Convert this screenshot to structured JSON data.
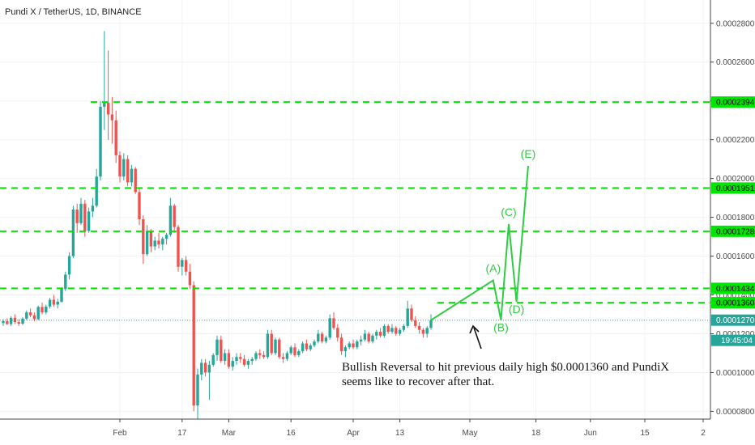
{
  "chart_data": {
    "type": "candlestick",
    "title": "Pundi X / TetherUS, 1D, BINANCE",
    "ylim": [
      7.6e-05,
      0.000292
    ],
    "y_ticks": [
      "0.0000800",
      "0.0001000",
      "0.0001200",
      "0.0001400",
      "0.0001600",
      "0.0001800",
      "0.0002000",
      "0.0002200",
      "0.0002400",
      "0.0002600",
      "0.0002800"
    ],
    "x_ticks": [
      {
        "label": "Feb",
        "index": 30
      },
      {
        "label": "17",
        "index": 46
      },
      {
        "label": "Mar",
        "index": 58
      },
      {
        "label": "16",
        "index": 74
      },
      {
        "label": "Apr",
        "index": 90
      },
      {
        "label": "13",
        "index": 102
      },
      {
        "label": "May",
        "index": 120
      },
      {
        "label": "18",
        "index": 137
      },
      {
        "label": "Jun",
        "index": 151
      },
      {
        "label": "15",
        "index": 165
      },
      {
        "label": "2",
        "index": 180
      }
    ],
    "level_tags": [
      {
        "value": 0.0002394,
        "label": "0.0002394"
      },
      {
        "value": 0.0001951,
        "label": "0.0001951"
      },
      {
        "value": 0.0001728,
        "label": "0.0001728"
      },
      {
        "value": 0.0001434,
        "label": "0.0001434"
      },
      {
        "value": 0.000136,
        "label": "0.0001360"
      }
    ],
    "last_price": {
      "value": 0.000127,
      "label": "0.0001270"
    },
    "countdown": "19:45:04",
    "wave_labels": [
      {
        "label": "(A)",
        "index": 126,
        "value": 0.0001475
      },
      {
        "label": "(B)",
        "index": 128,
        "value": 0.000127
      },
      {
        "label": "(C)",
        "index": 130,
        "value": 0.0001765
      },
      {
        "label": "(D)",
        "index": 132,
        "value": 0.0001365
      },
      {
        "label": "(E)",
        "index": 135,
        "value": 0.0002065
      }
    ],
    "annotation": [
      "Bullish Reversal to hit previous daily high $0.0001360 and PundiX",
      "seems like to recover after that."
    ],
    "colors": {
      "up": "#26a69a",
      "down": "#ef5350",
      "level": "#00e600",
      "wave": "#2ecc40",
      "price_line": "#26a69a"
    },
    "ohlc": [
      [
        0.0001255,
        0.0001275,
        0.000124,
        0.0001265
      ],
      [
        0.0001265,
        0.000128,
        0.0001245,
        0.000125
      ],
      [
        0.000125,
        0.000129,
        0.000124,
        0.0001282
      ],
      [
        0.0001282,
        0.00013,
        0.000125,
        0.000126
      ],
      [
        0.000126,
        0.0001275,
        0.000124,
        0.0001252
      ],
      [
        0.0001252,
        0.0001285,
        0.0001245,
        0.0001278
      ],
      [
        0.0001278,
        0.000132,
        0.000127,
        0.000131
      ],
      [
        0.000131,
        0.000133,
        0.0001285,
        0.0001295
      ],
      [
        0.0001295,
        0.000131,
        0.0001265,
        0.0001275
      ],
      [
        0.0001275,
        0.0001345,
        0.000127,
        0.0001338
      ],
      [
        0.0001338,
        0.000136,
        0.00013,
        0.000131
      ],
      [
        0.000131,
        0.000135,
        0.00013,
        0.000134
      ],
      [
        0.000134,
        0.0001385,
        0.000133,
        0.0001375
      ],
      [
        0.0001375,
        0.00014,
        0.000134,
        0.000135
      ],
      [
        0.000135,
        0.000138,
        0.000133,
        0.0001365
      ],
      [
        0.0001365,
        0.000144,
        0.000136,
        0.000143
      ],
      [
        0.000143,
        0.000152,
        0.000142,
        0.0001505
      ],
      [
        0.0001505,
        0.000162,
        0.000148,
        0.00016
      ],
      [
        0.00016,
        0.000186,
        0.000159,
        0.000184
      ],
      [
        0.000184,
        0.000187,
        0.000172,
        0.000177
      ],
      [
        0.000177,
        0.00019,
        0.000176,
        0.000187
      ],
      [
        0.000187,
        0.000189,
        0.00017,
        0.000173
      ],
      [
        0.000173,
        0.000185,
        0.000172,
        0.000183
      ],
      [
        0.000183,
        0.00019,
        0.00018,
        0.000186
      ],
      [
        0.000186,
        0.000205,
        0.000185,
        0.000201
      ],
      [
        0.000201,
        0.00024,
        0.000199,
        0.000237
      ],
      [
        0.000237,
        0.000276,
        0.000225,
        0.000239
      ],
      [
        0.000239,
        0.000266,
        0.00022,
        0.000233
      ],
      [
        0.000233,
        0.000242,
        0.000218,
        0.00023
      ],
      [
        0.00023,
        0.000235,
        0.000208,
        0.000212
      ],
      [
        0.000212,
        0.000214,
        0.000198,
        0.000201
      ],
      [
        0.000201,
        0.000213,
        0.000199,
        0.00021
      ],
      [
        0.00021,
        0.000212,
        0.000196,
        0.000198
      ],
      [
        0.000198,
        0.000207,
        0.000196,
        0.000205
      ],
      [
        0.000205,
        0.000206,
        0.000192,
        0.000193
      ],
      [
        0.000193,
        0.000195,
        0.000176,
        0.000179
      ],
      [
        0.000179,
        0.000181,
        0.000156,
        0.000161
      ],
      [
        0.000161,
        0.000176,
        0.00016,
        0.000173
      ],
      [
        0.000173,
        0.000174,
        0.000162,
        0.000165
      ],
      [
        0.000165,
        0.00017,
        0.000163,
        0.000168
      ],
      [
        0.000168,
        0.000172,
        0.000164,
        0.000166
      ],
      [
        0.000166,
        0.00017,
        0.000163,
        0.000169
      ],
      [
        0.000169,
        0.000172,
        0.000166,
        0.000171
      ],
      [
        0.000171,
        0.00019,
        0.00017,
        0.000186
      ],
      [
        0.000186,
        0.000187,
        0.000172,
        0.000175
      ],
      [
        0.000175,
        0.000176,
        0.000152,
        0.0001545
      ],
      [
        0.0001545,
        0.000159,
        0.00015,
        0.000158
      ],
      [
        0.000158,
        0.00016,
        0.00015,
        0.000152
      ],
      [
        0.000152,
        0.000156,
        0.000143,
        0.000145
      ],
      [
        0.000145,
        0.000147,
        8e-05,
        8.3e-05
      ],
      [
        8.3e-05,
        0.000102,
        7.2e-05,
        9.9e-05
      ],
      [
        9.9e-05,
        0.000107,
        9.6e-05,
        0.000105
      ],
      [
        0.000105,
        0.000107,
        9.8e-05,
        0.0001
      ],
      [
        0.0001,
        0.000106,
        8.6e-05,
        0.000104
      ],
      [
        0.000104,
        0.00011,
        0.000103,
        0.000109
      ],
      [
        0.000109,
        0.000119,
        0.000106,
        0.000117
      ],
      [
        0.000117,
        0.000119,
        0.000105,
        0.000106
      ],
      [
        0.000106,
        0.000112,
        0.000104,
        0.00011
      ],
      [
        0.00011,
        0.000112,
        0.000102,
        0.000103
      ],
      [
        0.000103,
        0.000108,
        0.000101,
        0.000106
      ],
      [
        0.000106,
        0.00011,
        0.000104,
        0.000108
      ],
      [
        0.000108,
        0.00011,
        0.000105,
        0.000107
      ],
      [
        0.000107,
        0.000109,
        0.000103,
        0.000104
      ],
      [
        0.000104,
        0.000107,
        0.000102,
        0.000106
      ],
      [
        0.000106,
        0.000108,
        0.000104,
        0.000107
      ],
      [
        0.000107,
        0.000111,
        0.000106,
        0.00011
      ],
      [
        0.00011,
        0.000112,
        0.000107,
        0.000109
      ],
      [
        0.000109,
        0.000111,
        0.000107,
        0.000108
      ],
      [
        0.000108,
        0.000122,
        0.000107,
        0.00012
      ],
      [
        0.00012,
        0.000122,
        0.000109,
        0.00011
      ],
      [
        0.00011,
        0.000118,
        0.000109,
        0.000117
      ],
      [
        0.000117,
        0.000118,
        0.000107,
        0.000108
      ],
      [
        0.000108,
        0.00011,
        0.000105,
        0.000107
      ],
      [
        0.000107,
        0.000111,
        0.000106,
        0.00011
      ],
      [
        0.00011,
        0.000114,
        0.000109,
        0.000113
      ],
      [
        0.000113,
        0.000115,
        0.000108,
        0.000109
      ],
      [
        0.000109,
        0.000112,
        0.000108,
        0.000111
      ],
      [
        0.000111,
        0.000116,
        0.00011,
        0.000115
      ],
      [
        0.000115,
        0.000117,
        0.000111,
        0.000112
      ],
      [
        0.000112,
        0.000115,
        0.000111,
        0.000114
      ],
      [
        0.000114,
        0.000117,
        0.000113,
        0.000116
      ],
      [
        0.000116,
        0.000122,
        0.000115,
        0.00012
      ],
      [
        0.00012,
        0.000121,
        0.000115,
        0.000116
      ],
      [
        0.000116,
        0.000119,
        0.000115,
        0.000118
      ],
      [
        0.000118,
        0.00013,
        0.000117,
        0.000128
      ],
      [
        0.000128,
        0.000131,
        0.000122,
        0.000123
      ],
      [
        0.000123,
        0.000125,
        0.000116,
        0.000118
      ],
      [
        0.000118,
        0.00012,
        0.000109,
        0.000111
      ],
      [
        0.000111,
        0.000114,
        0.000108,
        0.000113
      ],
      [
        0.000113,
        0.000116,
        0.000112,
        0.000115
      ],
      [
        0.000115,
        0.000117,
        0.000112,
        0.000113
      ],
      [
        0.000113,
        0.000117,
        0.000112,
        0.000116
      ],
      [
        0.000116,
        0.000119,
        0.000114,
        0.000117
      ],
      [
        0.000117,
        0.000122,
        0.000116,
        0.00012
      ],
      [
        0.00012,
        0.000121,
        0.000115,
        0.000116
      ],
      [
        0.000116,
        0.00012,
        0.000115,
        0.000119
      ],
      [
        0.000119,
        0.000122,
        0.000117,
        0.000121
      ],
      [
        0.000121,
        0.000123,
        0.000118,
        0.000119
      ],
      [
        0.000119,
        0.000125,
        0.000118,
        0.000124
      ],
      [
        0.000124,
        0.000125,
        0.00012,
        0.000121
      ],
      [
        0.000121,
        0.000125,
        0.00012,
        0.000123
      ],
      [
        0.000123,
        0.000124,
        0.000119,
        0.00012
      ],
      [
        0.00012,
        0.000123,
        0.000119,
        0.000122
      ],
      [
        0.000122,
        0.000125,
        0.000121,
        0.000124
      ],
      [
        0.000124,
        0.000137,
        0.000123,
        0.000133
      ],
      [
        0.000133,
        0.000135,
        0.000126,
        0.000127
      ],
      [
        0.000127,
        0.000129,
        0.000123,
        0.000124
      ],
      [
        0.000124,
        0.000126,
        0.00012,
        0.000122
      ],
      [
        0.000122,
        0.000123,
        0.000118,
        0.00012
      ],
      [
        0.00012,
        0.000124,
        0.000118,
        0.000123
      ],
      [
        0.000123,
        0.00013,
        0.000122,
        0.000127
      ]
    ]
  }
}
